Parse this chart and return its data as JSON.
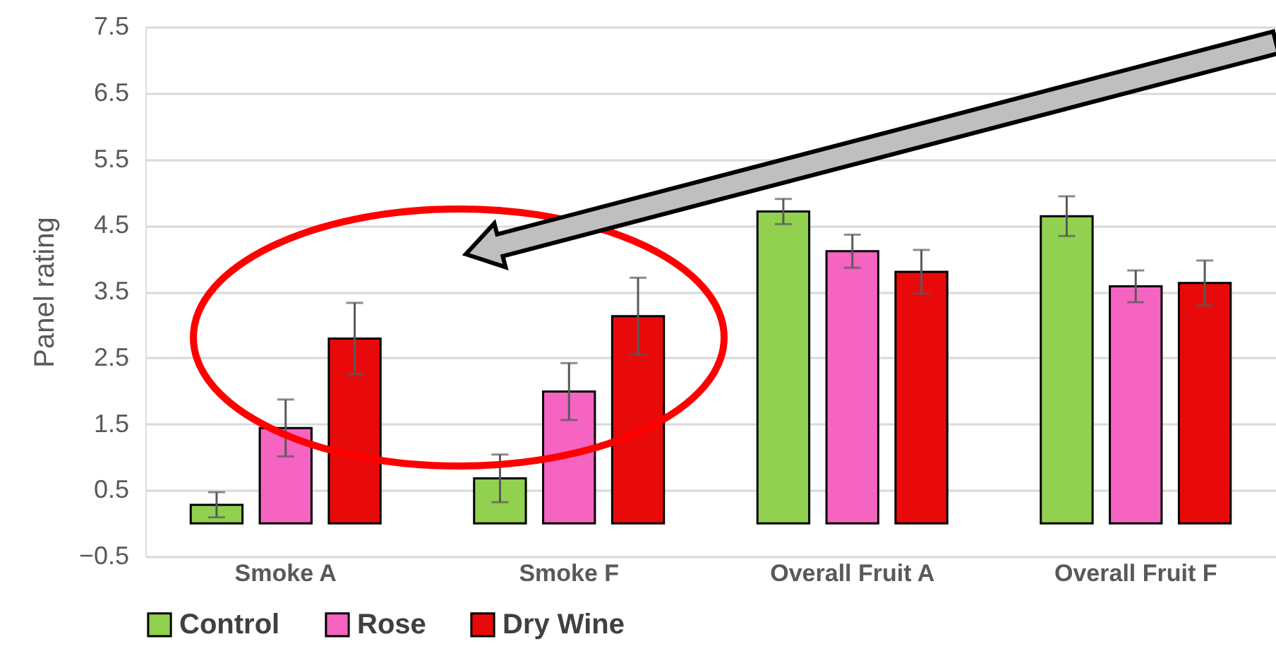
{
  "chart_data": {
    "type": "bar",
    "ylabel": "Panel rating",
    "categories": [
      "Smoke A",
      "Smoke F",
      "Overall Fruit A",
      "Overall Fruit F"
    ],
    "series": [
      {
        "name": "Control",
        "color": "#92d050",
        "values": [
          0.28,
          0.68,
          4.71,
          4.64
        ],
        "errors": [
          0.19,
          0.36,
          0.19,
          0.3
        ]
      },
      {
        "name": "Rose",
        "color": "#f464c0",
        "values": [
          1.44,
          1.99,
          4.11,
          3.58
        ],
        "errors": [
          0.43,
          0.43,
          0.25,
          0.24
        ]
      },
      {
        "name": "Dry Wine",
        "color": "#e80a0a",
        "values": [
          2.79,
          3.13,
          3.8,
          3.63
        ],
        "errors": [
          0.54,
          0.58,
          0.33,
          0.34
        ]
      }
    ],
    "ylim": [
      -0.5,
      7.5
    ],
    "yticks": [
      -0.5,
      0.5,
      1.5,
      2.5,
      3.5,
      4.5,
      5.5,
      6.5,
      7.5
    ],
    "grid": "y",
    "legend": "bottom"
  }
}
